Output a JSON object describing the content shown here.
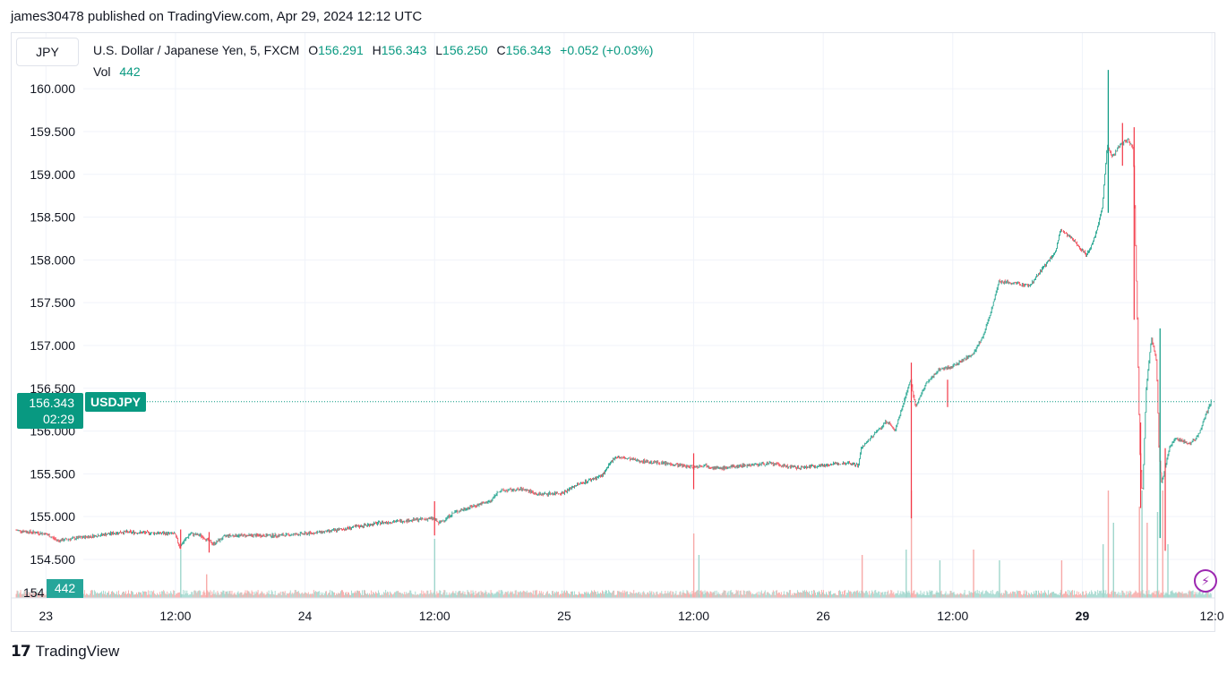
{
  "header": {
    "published_line": "james30478 published on TradingView.com, Apr 29, 2024 12:12 UTC"
  },
  "symbol_button": "JPY",
  "legend": {
    "title": "U.S. Dollar / Japanese Yen, 5, FXCM",
    "open_key": "O",
    "open": "156.291",
    "high_key": "H",
    "high": "156.343",
    "low_key": "L",
    "low": "156.250",
    "close_key": "C",
    "close": "156.343",
    "change": "+0.052 (+0.03%)",
    "vol_label": "Vol",
    "vol_value": "442"
  },
  "price_tag": {
    "price": "156.343",
    "countdown": "02:29",
    "symbol": "USDJPY"
  },
  "vol_tag": "442",
  "footer": {
    "brand": "TradingView",
    "brand_mark": "17"
  },
  "colors": {
    "up": "#089981",
    "down": "#f23645",
    "vol_up": "#9fd6cc",
    "vol_down": "#f7a9a7",
    "grid": "#f0f3fa"
  },
  "icons": {
    "alert": "lightning-bolt-icon"
  },
  "chart_data": {
    "type": "candlestick",
    "title": "U.S. Dollar / Japanese Yen, 5, FXCM",
    "y_tick_labels": [
      "154.500",
      "155.000",
      "155.500",
      "156.000",
      "156.500",
      "157.000",
      "157.500",
      "158.000",
      "158.500",
      "159.000",
      "159.500",
      "160.000"
    ],
    "y_ticks": [
      154.5,
      155.0,
      155.5,
      156.0,
      156.5,
      157.0,
      157.5,
      158.0,
      158.5,
      159.0,
      159.5,
      160.0
    ],
    "ylim": [
      154.05,
      160.65
    ],
    "x_tick_labels": [
      "23",
      "12:00",
      "24",
      "12:00",
      "25",
      "12:00",
      "26",
      "12:00",
      "29",
      "12:0"
    ],
    "x_ticks_day": [
      0.0,
      0.5,
      1.0,
      1.5,
      2.0,
      2.5,
      3.0,
      3.5,
      4.0,
      4.5
    ],
    "xlim": [
      -0.115,
      4.51
    ],
    "grid": true,
    "current_price": 156.343,
    "price_path": [
      [
        -0.11,
        154.84
      ],
      [
        0.0,
        154.8
      ],
      [
        0.05,
        154.72
      ],
      [
        0.15,
        154.76
      ],
      [
        0.3,
        154.82
      ],
      [
        0.5,
        154.8
      ],
      [
        0.52,
        154.65
      ],
      [
        0.56,
        154.8
      ],
      [
        0.6,
        154.78
      ],
      [
        0.65,
        154.68
      ],
      [
        0.7,
        154.78
      ],
      [
        0.9,
        154.78
      ],
      [
        1.0,
        154.8
      ],
      [
        1.1,
        154.83
      ],
      [
        1.2,
        154.88
      ],
      [
        1.3,
        154.93
      ],
      [
        1.5,
        154.98
      ],
      [
        1.52,
        154.92
      ],
      [
        1.58,
        155.05
      ],
      [
        1.65,
        155.12
      ],
      [
        1.72,
        155.18
      ],
      [
        1.75,
        155.3
      ],
      [
        1.85,
        155.32
      ],
      [
        1.9,
        155.26
      ],
      [
        2.0,
        155.28
      ],
      [
        2.05,
        155.37
      ],
      [
        2.15,
        155.48
      ],
      [
        2.2,
        155.7
      ],
      [
        2.3,
        155.65
      ],
      [
        2.4,
        155.62
      ],
      [
        2.5,
        155.58
      ],
      [
        2.55,
        155.6
      ],
      [
        2.6,
        155.56
      ],
      [
        2.7,
        155.6
      ],
      [
        2.8,
        155.62
      ],
      [
        2.9,
        155.57
      ],
      [
        3.0,
        155.6
      ],
      [
        3.1,
        155.63
      ],
      [
        3.14,
        155.6
      ],
      [
        3.15,
        155.8
      ],
      [
        3.25,
        156.12
      ],
      [
        3.28,
        156.0
      ],
      [
        3.32,
        156.4
      ],
      [
        3.34,
        156.6
      ],
      [
        3.36,
        156.28
      ],
      [
        3.4,
        156.55
      ],
      [
        3.45,
        156.72
      ],
      [
        3.5,
        156.75
      ],
      [
        3.58,
        156.9
      ],
      [
        3.62,
        157.1
      ],
      [
        3.66,
        157.5
      ],
      [
        3.68,
        157.75
      ],
      [
        3.8,
        157.7
      ],
      [
        3.85,
        157.9
      ],
      [
        3.9,
        158.1
      ],
      [
        3.92,
        158.35
      ],
      [
        3.98,
        158.2
      ],
      [
        4.02,
        158.05
      ],
      [
        4.05,
        158.25
      ],
      [
        4.08,
        158.6
      ],
      [
        4.1,
        159.35
      ],
      [
        4.12,
        159.2
      ],
      [
        4.15,
        159.35
      ],
      [
        4.18,
        159.4
      ],
      [
        4.2,
        159.3
      ],
      [
        4.21,
        158.0
      ],
      [
        4.215,
        157.4
      ],
      [
        4.225,
        155.8
      ],
      [
        4.235,
        155.2
      ],
      [
        4.25,
        156.5
      ],
      [
        4.27,
        157.1
      ],
      [
        4.29,
        156.8
      ],
      [
        4.3,
        155.7
      ],
      [
        4.31,
        155.4
      ],
      [
        4.34,
        155.8
      ],
      [
        4.36,
        155.92
      ],
      [
        4.42,
        155.85
      ],
      [
        4.45,
        155.95
      ],
      [
        4.5,
        156.343
      ]
    ],
    "spikes": [
      {
        "x": 0.52,
        "high": 154.85,
        "low": 154.62
      },
      {
        "x": 0.63,
        "high": 154.82,
        "low": 154.58
      },
      {
        "x": 1.5,
        "high": 155.18,
        "low": 154.78
      },
      {
        "x": 2.5,
        "high": 155.74,
        "low": 155.32
      },
      {
        "x": 3.34,
        "high": 156.8,
        "low": 154.98
      },
      {
        "x": 3.48,
        "high": 156.6,
        "low": 156.28
      },
      {
        "x": 4.1,
        "high": 160.22,
        "low": 158.55
      },
      {
        "x": 4.155,
        "high": 159.6,
        "low": 159.1
      },
      {
        "x": 4.2,
        "high": 159.55,
        "low": 157.3
      },
      {
        "x": 4.225,
        "high": 156.1,
        "low": 155.1
      },
      {
        "x": 4.3,
        "high": 157.2,
        "low": 154.75
      },
      {
        "x": 4.32,
        "high": 155.8,
        "low": 154.6
      }
    ],
    "volume_spikes": [
      {
        "x": 0.52,
        "v": 0.45
      },
      {
        "x": 0.62,
        "v": 0.22
      },
      {
        "x": 1.5,
        "v": 0.55
      },
      {
        "x": 2.5,
        "v": 0.6
      },
      {
        "x": 2.52,
        "v": 0.4
      },
      {
        "x": 3.15,
        "v": 0.4
      },
      {
        "x": 3.32,
        "v": 0.45
      },
      {
        "x": 3.34,
        "v": 1.0
      },
      {
        "x": 3.45,
        "v": 0.35
      },
      {
        "x": 3.58,
        "v": 0.45
      },
      {
        "x": 3.68,
        "v": 0.35
      },
      {
        "x": 3.92,
        "v": 0.35
      },
      {
        "x": 4.08,
        "v": 0.5
      },
      {
        "x": 4.1,
        "v": 1.0
      },
      {
        "x": 4.12,
        "v": 0.7
      },
      {
        "x": 4.22,
        "v": 0.85
      },
      {
        "x": 4.23,
        "v": 1.0
      },
      {
        "x": 4.25,
        "v": 0.7
      },
      {
        "x": 4.29,
        "v": 0.8
      },
      {
        "x": 4.31,
        "v": 1.0
      },
      {
        "x": 4.33,
        "v": 0.5
      }
    ]
  }
}
